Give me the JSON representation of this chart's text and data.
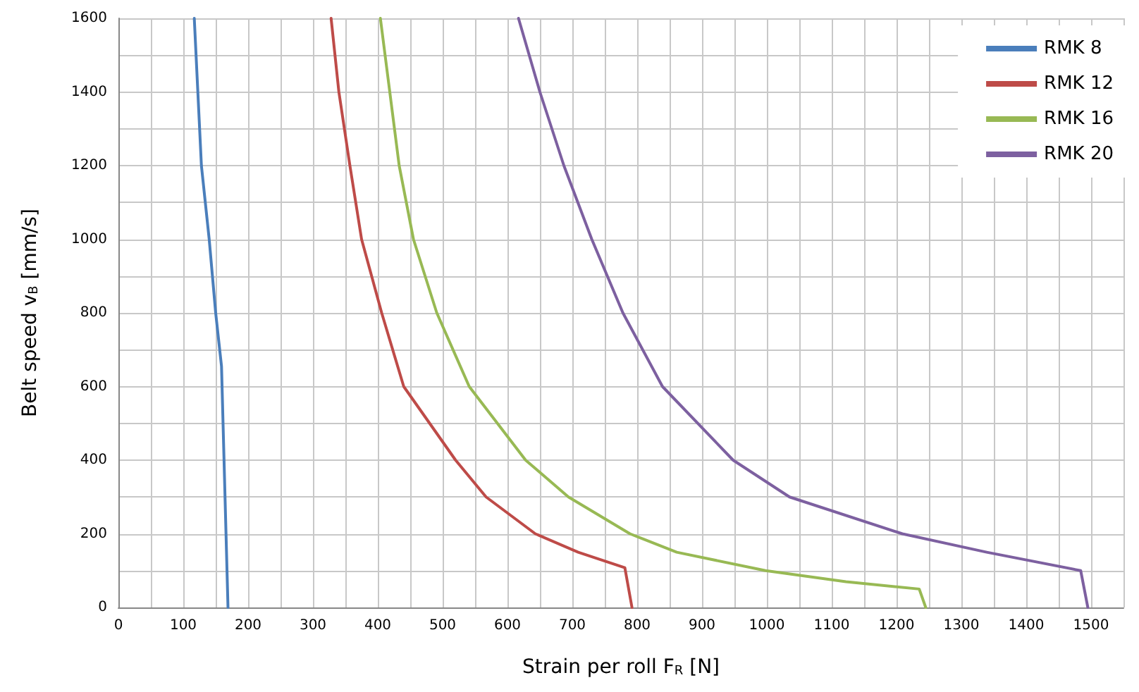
{
  "chart_data": {
    "type": "line",
    "xlabel": "Strain per roll F$_{R}$ [N]",
    "ylabel": "Belt speed v$_{B}$ [mm/s]",
    "xlim": [
      0,
      1550
    ],
    "ylim": [
      0,
      1600
    ],
    "xticks": [
      0,
      {
        "value": 50,
        "label": null
      },
      100,
      {
        "value": 150,
        "label": null
      },
      200,
      {
        "value": 250,
        "label": null
      },
      300,
      {
        "value": 350,
        "label": null
      },
      400,
      {
        "value": 450,
        "label": null
      },
      500,
      {
        "value": 550,
        "label": null
      },
      600,
      {
        "value": 650,
        "label": null
      },
      700,
      {
        "value": 750,
        "label": null
      },
      800,
      {
        "value": 850,
        "label": null
      },
      900,
      {
        "value": 950,
        "label": null
      },
      1000,
      {
        "value": 1050,
        "label": null
      },
      1100,
      {
        "value": 1150,
        "label": null
      },
      1200,
      {
        "value": 1250,
        "label": null
      },
      1300,
      {
        "value": 1350,
        "label": null
      },
      1400,
      {
        "value": 1450,
        "label": null
      },
      1500,
      {
        "value": 1550,
        "label": null
      }
    ],
    "yticks": [
      0,
      {
        "value": 100,
        "label": null
      },
      200,
      {
        "value": 300,
        "label": null
      },
      400,
      {
        "value": 500,
        "label": null
      },
      600,
      {
        "value": 700,
        "label": null
      },
      800,
      {
        "value": 900,
        "label": null
      },
      1000,
      {
        "value": 1100,
        "label": null
      },
      1200,
      {
        "value": 1300,
        "label": null
      },
      1400,
      {
        "value": 1500,
        "label": null
      },
      1600
    ],
    "grid": true,
    "legend": "top right",
    "marker": "none",
    "line_style": "solid",
    "series": [
      {
        "name": "RMK 8",
        "color": "#4a7ebb",
        "x": [
          117,
          128,
          140,
          150,
          159,
          169
        ],
        "values": [
          1600,
          1200,
          1000,
          800,
          655,
          0
        ]
      },
      {
        "name": "RMK 12",
        "color": "#be4b48",
        "x": [
          328,
          340,
          357,
          375,
          406,
          440,
          520,
          567,
          643,
          709,
          781,
          792
        ],
        "values": [
          1600,
          1400,
          1200,
          1000,
          800,
          600,
          400,
          300,
          200,
          150,
          108,
          0
        ]
      },
      {
        "name": "RMK 16",
        "color": "#98b954",
        "x": [
          404,
          433,
          455,
          491,
          541,
          628,
          694,
          789,
          861,
          998,
          1122,
          1235,
          1245
        ],
        "values": [
          1600,
          1200,
          1000,
          800,
          600,
          400,
          300,
          200,
          150,
          100,
          70,
          50,
          0
        ]
      },
      {
        "name": "RMK 20",
        "color": "#7d60a0",
        "x": [
          617,
          650,
          687,
          730,
          778,
          839,
          948,
          1035,
          1209,
          1339,
          1484,
          1495
        ],
        "values": [
          1600,
          1400,
          1200,
          1000,
          800,
          600,
          400,
          300,
          200,
          150,
          100,
          0
        ]
      }
    ]
  }
}
